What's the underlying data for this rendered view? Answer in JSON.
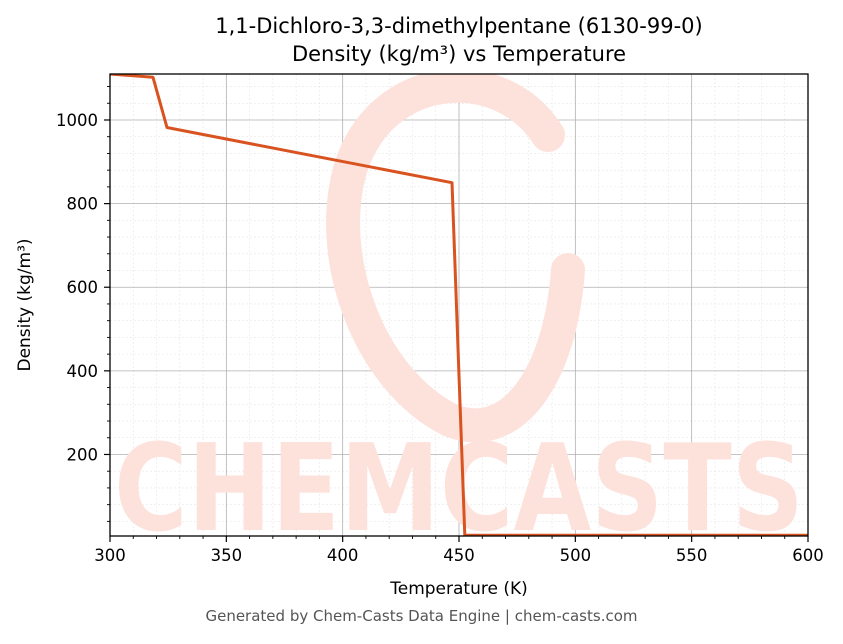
{
  "chart_data": {
    "type": "line",
    "title": "1,1-Dichloro-3,3-dimethylpentane (6130-99-0)",
    "subtitle": "Density (kg/m³) vs Temperature",
    "xlabel": "Temperature (K)",
    "ylabel": "Density (kg/m³)",
    "xlim": [
      300,
      600
    ],
    "ylim": [
      5,
      1110
    ],
    "x_ticks": [
      300,
      350,
      400,
      450,
      500,
      550,
      600
    ],
    "y_ticks": [
      200,
      400,
      600,
      800,
      1000
    ],
    "grid": true,
    "series": [
      {
        "color": "#d95321",
        "x": [
          300,
          318.5,
          324.5,
          447,
          452.5,
          600
        ],
        "y": [
          1110,
          1102,
          982,
          850,
          7,
          7
        ]
      }
    ]
  },
  "watermark": {
    "text": "CHEMCASTS",
    "color": "#fde2dc"
  },
  "footer": "Generated by Chem-Casts Data Engine | chem-casts.com"
}
